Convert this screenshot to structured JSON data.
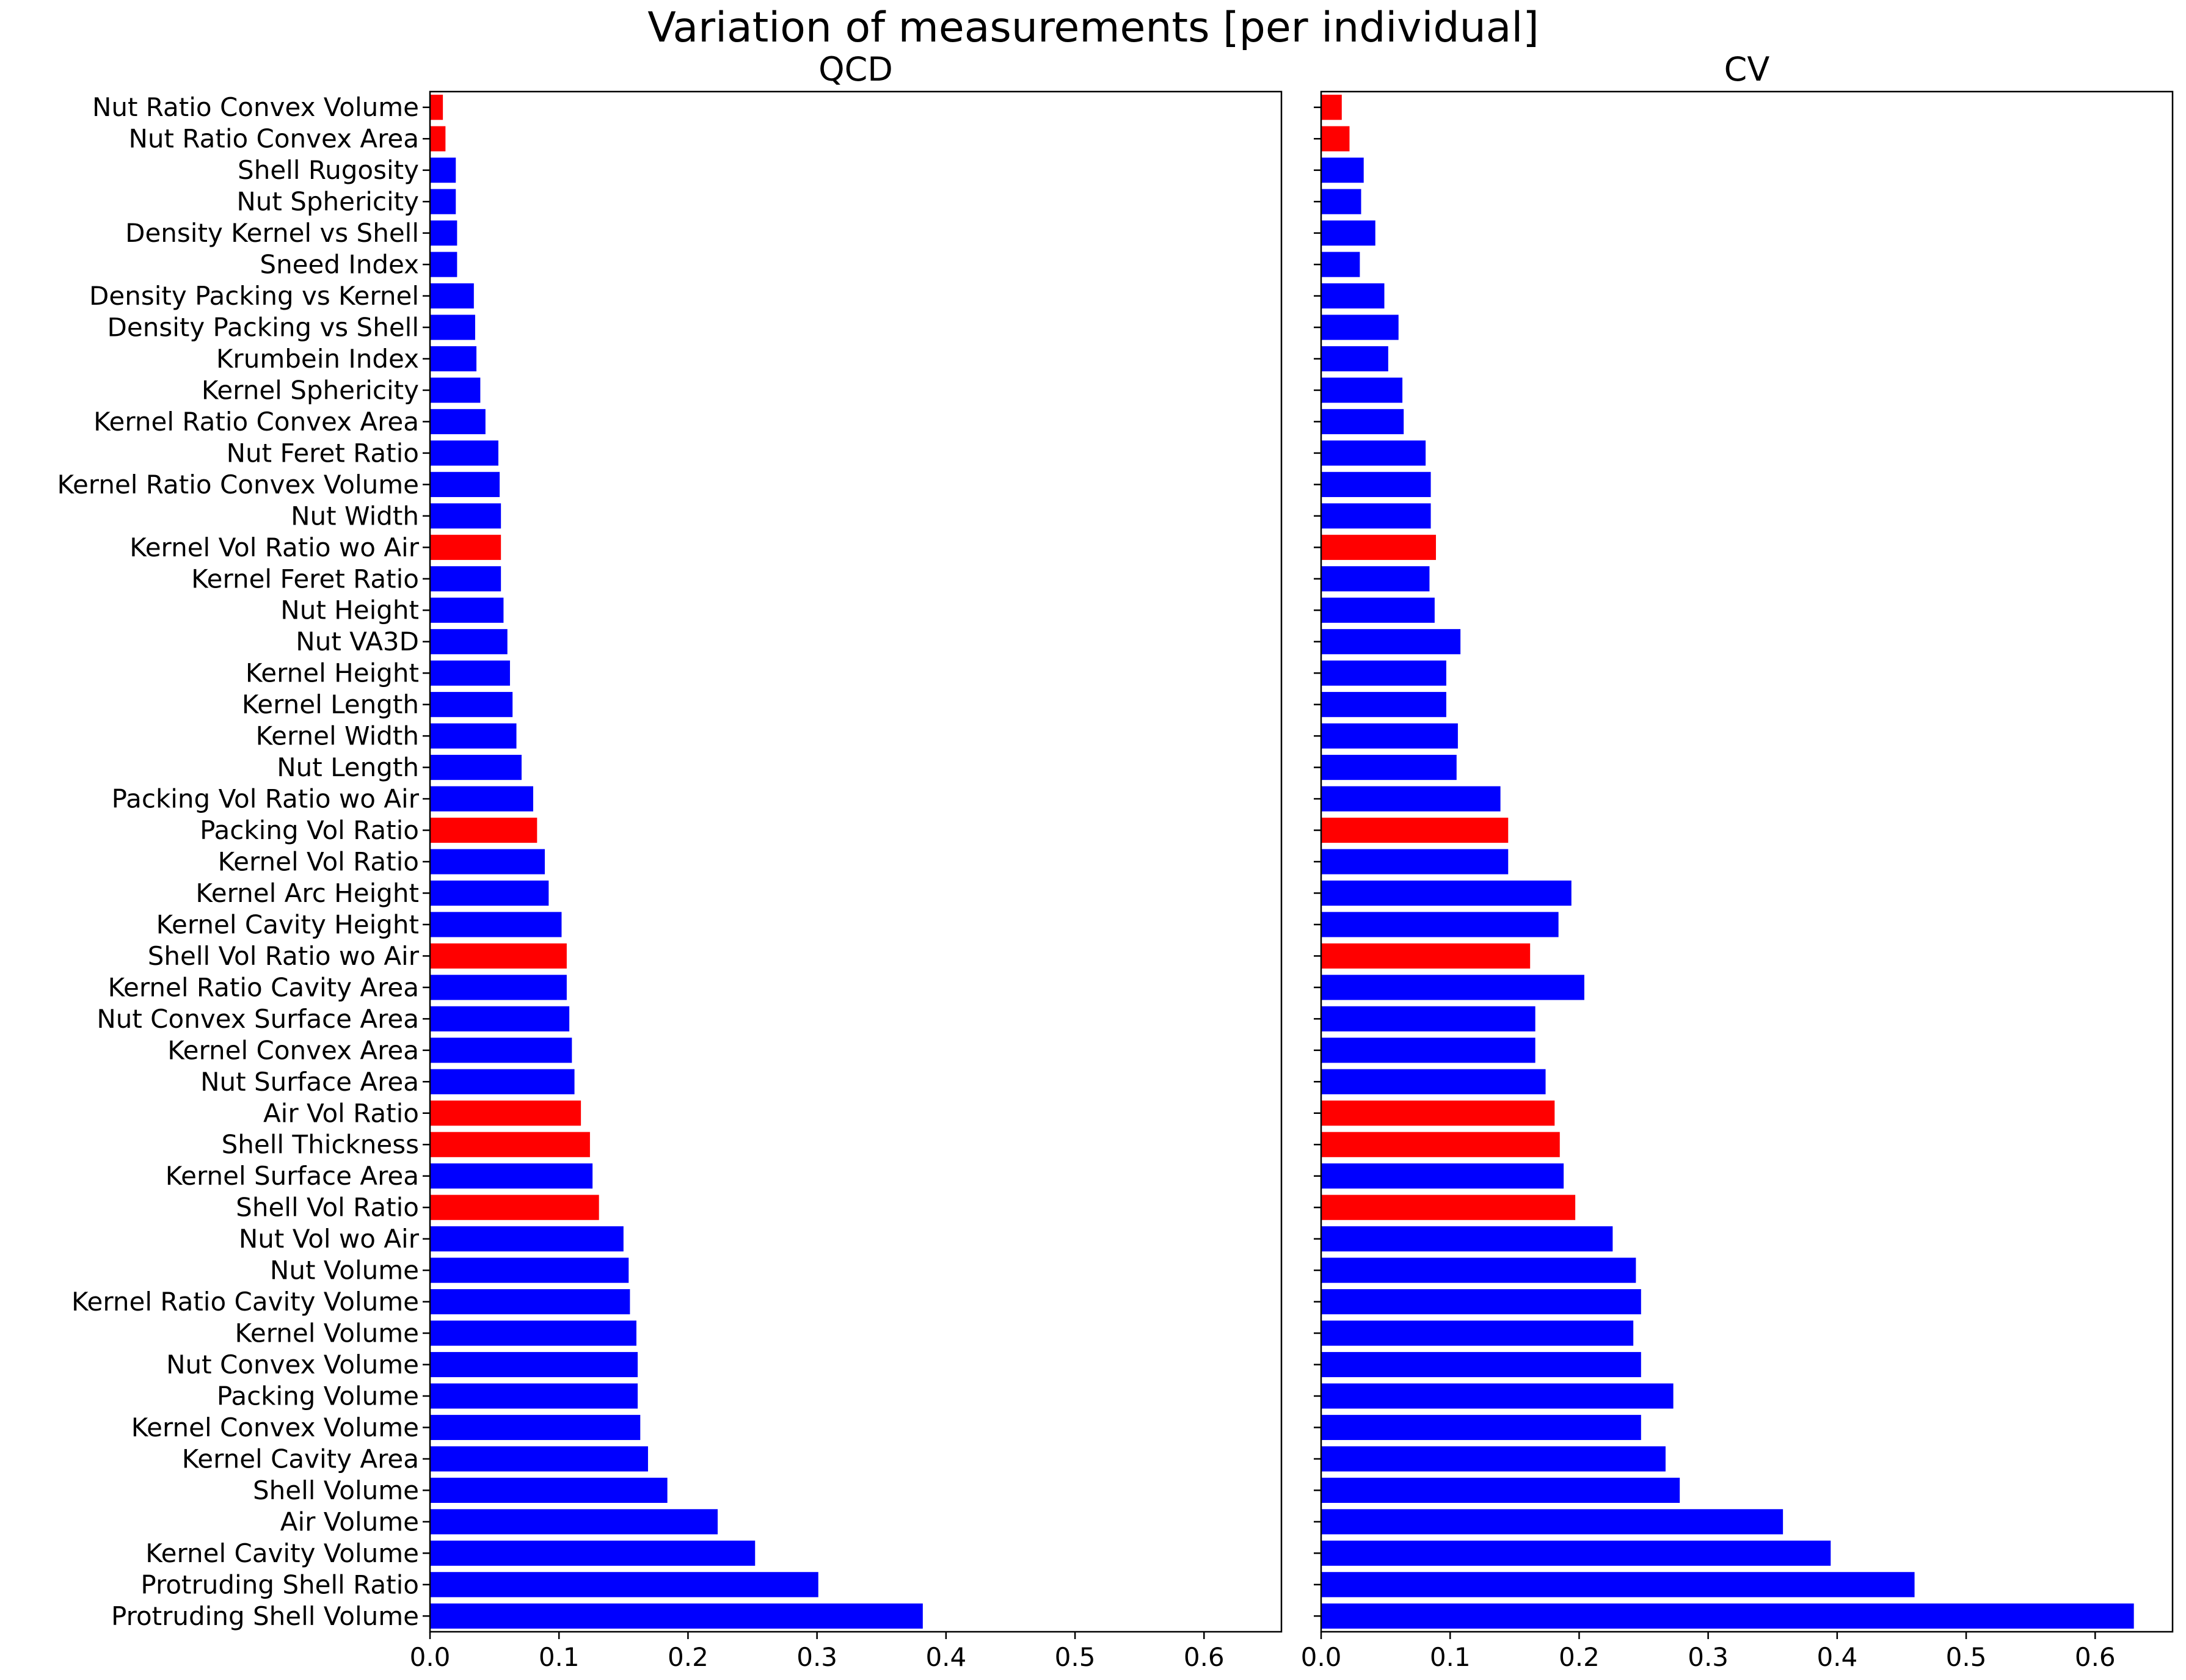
{
  "suptitle": "Variation of measurements [per individual]",
  "colors": {
    "highlight": "#ff0000",
    "normal": "#0000ff"
  },
  "chart_data": {
    "type": "bar",
    "orientation": "horizontal",
    "categories": [
      "Nut Ratio Convex Volume",
      "Nut Ratio Convex Area",
      "Shell Rugosity",
      "Nut Sphericity",
      "Density Kernel vs Shell",
      "Sneed Index",
      "Density Packing vs Kernel",
      "Density Packing vs Shell",
      "Krumbein Index",
      "Kernel Sphericity",
      "Kernel Ratio Convex Area",
      "Nut Feret Ratio",
      "Kernel Ratio Convex Volume",
      "Nut Width",
      "Kernel Vol Ratio wo Air",
      "Kernel Feret Ratio",
      "Nut Height",
      "Nut VA3D",
      "Kernel Height",
      "Kernel Length",
      "Kernel Width",
      "Nut Length",
      "Packing Vol Ratio wo Air",
      "Packing Vol Ratio",
      "Kernel Vol Ratio",
      "Kernel Arc Height",
      "Kernel Cavity Height",
      "Shell Vol Ratio wo Air",
      "Kernel Ratio Cavity Area",
      "Nut Convex Surface Area",
      "Kernel Convex Area",
      "Nut Surface Area",
      "Air Vol Ratio",
      "Shell Thickness",
      "Kernel Surface Area",
      "Shell Vol Ratio",
      "Nut Vol wo Air",
      "Nut Volume",
      "Kernel Ratio Cavity Volume",
      "Kernel Volume",
      "Nut Convex Volume",
      "Packing Volume",
      "Kernel Convex Volume",
      "Kernel Cavity Area",
      "Shell Volume",
      "Air Volume",
      "Kernel Cavity Volume",
      "Protruding Shell Ratio",
      "Protruding Shell Volume"
    ],
    "highlighted": [
      "Nut Ratio Convex Volume",
      "Nut Ratio Convex Area",
      "Kernel Vol Ratio wo Air",
      "Packing Vol Ratio",
      "Shell Vol Ratio wo Air",
      "Air Vol Ratio",
      "Shell Thickness",
      "Shell Vol Ratio"
    ],
    "panels": [
      {
        "title": "QCD",
        "values": [
          0.01,
          0.012,
          0.02,
          0.02,
          0.021,
          0.021,
          0.034,
          0.035,
          0.036,
          0.039,
          0.043,
          0.053,
          0.054,
          0.055,
          0.055,
          0.055,
          0.057,
          0.06,
          0.062,
          0.064,
          0.067,
          0.071,
          0.08,
          0.083,
          0.089,
          0.092,
          0.102,
          0.106,
          0.106,
          0.108,
          0.11,
          0.112,
          0.117,
          0.124,
          0.126,
          0.131,
          0.15,
          0.154,
          0.155,
          0.16,
          0.161,
          0.161,
          0.163,
          0.169,
          0.184,
          0.223,
          0.252,
          0.301,
          0.382
        ],
        "xlim": [
          0,
          0.66
        ],
        "xticks": [
          "0.0",
          "0.1",
          "0.2",
          "0.3",
          "0.4",
          "0.5",
          "0.6"
        ]
      },
      {
        "title": "CV",
        "values": [
          0.016,
          0.022,
          0.033,
          0.031,
          0.042,
          0.03,
          0.049,
          0.06,
          0.052,
          0.063,
          0.064,
          0.081,
          0.085,
          0.085,
          0.089,
          0.084,
          0.088,
          0.108,
          0.097,
          0.097,
          0.106,
          0.105,
          0.139,
          0.145,
          0.145,
          0.194,
          0.184,
          0.162,
          0.204,
          0.166,
          0.166,
          0.174,
          0.181,
          0.185,
          0.188,
          0.197,
          0.226,
          0.244,
          0.248,
          0.242,
          0.248,
          0.273,
          0.248,
          0.267,
          0.278,
          0.358,
          0.395,
          0.46,
          0.63
        ],
        "xlim": [
          0,
          0.66
        ],
        "xticks": [
          "0.0",
          "0.1",
          "0.2",
          "0.3",
          "0.4",
          "0.5",
          "0.6"
        ]
      }
    ],
    "grid": false,
    "legend": "none"
  }
}
